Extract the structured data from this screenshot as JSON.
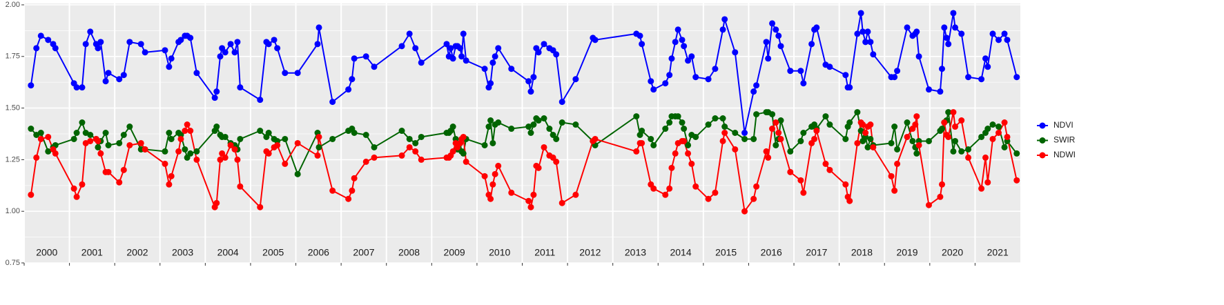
{
  "chart_data": {
    "type": "line",
    "x": [
      2000.15,
      2000.27,
      2000.37,
      2000.53,
      2000.64,
      2000.69,
      2001.1,
      2001.16,
      2001.28,
      2001.36,
      2001.46,
      2001.59,
      2001.63,
      2001.69,
      2001.8,
      2001.86,
      2002.1,
      2002.2,
      2002.33,
      2002.58,
      2002.67,
      2003.11,
      2003.2,
      2003.25,
      2003.41,
      2003.46,
      2003.55,
      2003.6,
      2003.67,
      2003.81,
      2004.21,
      2004.25,
      2004.33,
      2004.37,
      2004.44,
      2004.56,
      2004.65,
      2004.71,
      2004.77,
      2005.21,
      2005.35,
      2005.4,
      2005.52,
      2005.59,
      2005.76,
      2006.04,
      2006.48,
      2006.51,
      2006.81,
      2007.16,
      2007.24,
      2007.29,
      2007.55,
      2007.73,
      2008.34,
      2008.51,
      2008.64,
      2008.77,
      2009.33,
      2009.38,
      2009.42,
      2009.47,
      2009.53,
      2009.57,
      2009.63,
      2009.66,
      2009.7,
      2009.76,
      2010.17,
      2010.26,
      2010.3,
      2010.35,
      2010.4,
      2010.47,
      2010.76,
      2011.14,
      2011.19,
      2011.25,
      2011.31,
      2011.36,
      2011.48,
      2011.6,
      2011.68,
      2011.75,
      2011.88,
      2012.18,
      2012.56,
      2012.61,
      2013.52,
      2013.6,
      2013.64,
      2013.84,
      2013.9,
      2014.16,
      2014.25,
      2014.3,
      2014.38,
      2014.44,
      2014.53,
      2014.57,
      2014.66,
      2014.74,
      2014.83,
      2015.11,
      2015.26,
      2015.43,
      2015.47,
      2015.7,
      2015.91,
      2016.11,
      2016.17,
      2016.39,
      2016.43,
      2016.52,
      2016.6,
      2016.66,
      2016.71,
      2016.92,
      2017.15,
      2017.21,
      2017.39,
      2017.45,
      2017.5,
      2017.7,
      2017.79,
      2018.14,
      2018.19,
      2018.23,
      2018.4,
      2018.48,
      2018.52,
      2018.58,
      2018.63,
      2018.69,
      2018.75,
      2019.15,
      2019.22,
      2019.28,
      2019.5,
      2019.62,
      2019.68,
      2019.71,
      2019.76,
      2019.98,
      2020.23,
      2020.27,
      2020.32,
      2020.37,
      2020.41,
      2020.52,
      2020.56,
      2020.7,
      2020.85,
      2021.14,
      2021.23,
      2021.28,
      2021.39,
      2021.52,
      2021.65,
      2021.71,
      2021.92
    ],
    "series": [
      {
        "name": "NDVI",
        "color": "#0000ff",
        "values": [
          1.61,
          1.79,
          1.85,
          1.83,
          1.81,
          1.79,
          1.62,
          1.6,
          1.6,
          1.81,
          1.87,
          1.81,
          1.79,
          1.82,
          1.63,
          1.67,
          1.64,
          1.66,
          1.82,
          1.81,
          1.77,
          1.78,
          1.7,
          1.74,
          1.82,
          1.83,
          1.85,
          1.85,
          1.84,
          1.67,
          1.55,
          1.58,
          1.75,
          1.79,
          1.77,
          1.81,
          1.77,
          1.82,
          1.6,
          1.54,
          1.82,
          1.81,
          1.83,
          1.79,
          1.67,
          1.67,
          1.81,
          1.89,
          1.53,
          1.59,
          1.64,
          1.74,
          1.75,
          1.7,
          1.8,
          1.86,
          1.79,
          1.72,
          1.81,
          1.75,
          1.79,
          1.74,
          1.8,
          1.8,
          1.79,
          1.75,
          1.86,
          1.73,
          1.69,
          1.6,
          1.62,
          1.72,
          1.75,
          1.79,
          1.69,
          1.63,
          1.58,
          1.65,
          1.79,
          1.77,
          1.81,
          1.79,
          1.78,
          1.76,
          1.53,
          1.64,
          1.84,
          1.83,
          1.86,
          1.85,
          1.81,
          1.63,
          1.59,
          1.62,
          1.66,
          1.74,
          1.82,
          1.88,
          1.83,
          1.8,
          1.73,
          1.75,
          1.65,
          1.64,
          1.69,
          1.88,
          1.93,
          1.77,
          1.38,
          1.58,
          1.61,
          1.82,
          1.74,
          1.91,
          1.88,
          1.85,
          1.8,
          1.68,
          1.68,
          1.62,
          1.81,
          1.88,
          1.89,
          1.71,
          1.7,
          1.66,
          1.6,
          1.6,
          1.86,
          1.96,
          1.87,
          1.82,
          1.87,
          1.82,
          1.76,
          1.65,
          1.65,
          1.68,
          1.89,
          1.85,
          1.86,
          1.87,
          1.75,
          1.59,
          1.58,
          1.69,
          1.89,
          1.84,
          1.81,
          1.96,
          1.89,
          1.86,
          1.65,
          1.64,
          1.74,
          1.7,
          1.86,
          1.83,
          1.86,
          1.83,
          1.65
        ]
      },
      {
        "name": "SWIR",
        "color": "#006400",
        "values": [
          1.4,
          1.37,
          1.38,
          1.29,
          1.31,
          1.32,
          1.35,
          1.38,
          1.43,
          1.38,
          1.37,
          1.35,
          1.31,
          1.34,
          1.38,
          1.32,
          1.33,
          1.37,
          1.41,
          1.3,
          1.3,
          1.29,
          1.38,
          1.35,
          1.38,
          1.37,
          1.3,
          1.26,
          1.28,
          1.29,
          1.39,
          1.41,
          1.37,
          1.36,
          1.36,
          1.33,
          1.32,
          1.3,
          1.35,
          1.39,
          1.36,
          1.38,
          1.35,
          1.34,
          1.35,
          1.18,
          1.38,
          1.31,
          1.35,
          1.39,
          1.4,
          1.38,
          1.37,
          1.31,
          1.39,
          1.35,
          1.33,
          1.36,
          1.38,
          1.38,
          1.39,
          1.41,
          1.35,
          1.3,
          1.33,
          1.29,
          1.28,
          1.35,
          1.32,
          1.41,
          1.44,
          1.33,
          1.42,
          1.43,
          1.4,
          1.41,
          1.38,
          1.42,
          1.45,
          1.44,
          1.45,
          1.4,
          1.37,
          1.35,
          1.43,
          1.42,
          1.34,
          1.32,
          1.46,
          1.37,
          1.39,
          1.35,
          1.32,
          1.4,
          1.43,
          1.46,
          1.46,
          1.46,
          1.43,
          1.4,
          1.32,
          1.37,
          1.36,
          1.42,
          1.45,
          1.45,
          1.41,
          1.38,
          1.35,
          1.35,
          1.47,
          1.48,
          1.48,
          1.47,
          1.32,
          1.35,
          1.44,
          1.29,
          1.34,
          1.38,
          1.41,
          1.42,
          1.4,
          1.46,
          1.42,
          1.35,
          1.41,
          1.43,
          1.48,
          1.39,
          1.34,
          1.36,
          1.31,
          1.35,
          1.32,
          1.33,
          1.41,
          1.3,
          1.43,
          1.34,
          1.31,
          1.28,
          1.34,
          1.34,
          1.39,
          1.4,
          1.43,
          1.44,
          1.48,
          1.29,
          1.34,
          1.29,
          1.3,
          1.36,
          1.38,
          1.4,
          1.42,
          1.41,
          1.31,
          1.34,
          1.28
        ]
      },
      {
        "name": "NDWI",
        "color": "#ff0000",
        "values": [
          1.08,
          1.26,
          1.35,
          1.36,
          1.3,
          1.28,
          1.11,
          1.07,
          1.13,
          1.33,
          1.34,
          1.35,
          1.34,
          1.28,
          1.19,
          1.19,
          1.14,
          1.2,
          1.32,
          1.33,
          1.3,
          1.23,
          1.13,
          1.17,
          1.29,
          1.35,
          1.39,
          1.42,
          1.39,
          1.25,
          1.02,
          1.04,
          1.25,
          1.28,
          1.26,
          1.32,
          1.3,
          1.25,
          1.12,
          1.02,
          1.29,
          1.28,
          1.31,
          1.32,
          1.23,
          1.33,
          1.27,
          1.36,
          1.1,
          1.06,
          1.1,
          1.16,
          1.24,
          1.26,
          1.27,
          1.31,
          1.29,
          1.25,
          1.26,
          1.26,
          1.27,
          1.29,
          1.33,
          1.31,
          1.33,
          1.35,
          1.36,
          1.24,
          1.17,
          1.08,
          1.06,
          1.13,
          1.18,
          1.22,
          1.09,
          1.05,
          1.02,
          1.08,
          1.22,
          1.21,
          1.31,
          1.27,
          1.26,
          1.24,
          1.04,
          1.08,
          1.34,
          1.35,
          1.29,
          1.33,
          1.33,
          1.13,
          1.11,
          1.08,
          1.11,
          1.21,
          1.28,
          1.33,
          1.34,
          1.34,
          1.28,
          1.23,
          1.12,
          1.06,
          1.09,
          1.34,
          1.38,
          1.3,
          1.0,
          1.06,
          1.12,
          1.29,
          1.26,
          1.4,
          1.43,
          1.38,
          1.35,
          1.19,
          1.15,
          1.09,
          1.33,
          1.35,
          1.39,
          1.23,
          1.2,
          1.13,
          1.07,
          1.05,
          1.33,
          1.43,
          1.42,
          1.38,
          1.41,
          1.42,
          1.31,
          1.17,
          1.1,
          1.23,
          1.36,
          1.4,
          1.42,
          1.46,
          1.32,
          1.03,
          1.07,
          1.13,
          1.43,
          1.37,
          1.36,
          1.48,
          1.41,
          1.44,
          1.26,
          1.11,
          1.26,
          1.14,
          1.35,
          1.38,
          1.43,
          1.36,
          1.15
        ]
      }
    ],
    "xlim": [
      2000,
      2022
    ],
    "xticks": [
      {
        "value": 2000,
        "label": "2000"
      },
      {
        "value": 2001,
        "label": "2001"
      },
      {
        "value": 2002,
        "label": "2002"
      },
      {
        "value": 2003,
        "label": "2003"
      },
      {
        "value": 2004,
        "label": "2004"
      },
      {
        "value": 2005,
        "label": "2005"
      },
      {
        "value": 2006,
        "label": "2006"
      },
      {
        "value": 2007,
        "label": "2007"
      },
      {
        "value": 2008,
        "label": "2008"
      },
      {
        "value": 2009,
        "label": "2009"
      },
      {
        "value": 2010,
        "label": "2010"
      },
      {
        "value": 2011,
        "label": "2011"
      },
      {
        "value": 2012,
        "label": "2012"
      },
      {
        "value": 2013,
        "label": "2013"
      },
      {
        "value": 2014,
        "label": "2014"
      },
      {
        "value": 2015,
        "label": "2015"
      },
      {
        "value": 2016,
        "label": "2016"
      },
      {
        "value": 2017,
        "label": "2017"
      },
      {
        "value": 2018,
        "label": "2018"
      },
      {
        "value": 2019,
        "label": "2019"
      },
      {
        "value": 2020,
        "label": "2020"
      },
      {
        "value": 2021,
        "label": "2021"
      }
    ],
    "ylim": [
      0.75,
      2.0
    ],
    "yticks": [
      {
        "value": 0.75,
        "label": "0.75"
      },
      {
        "value": 1.0,
        "label": "1.00"
      },
      {
        "value": 1.25,
        "label": "1.25"
      },
      {
        "value": 1.5,
        "label": "1.50"
      },
      {
        "value": 1.75,
        "label": "1.75"
      },
      {
        "value": 2.0,
        "label": "2.00"
      }
    ],
    "grid": true,
    "legend": "right"
  }
}
